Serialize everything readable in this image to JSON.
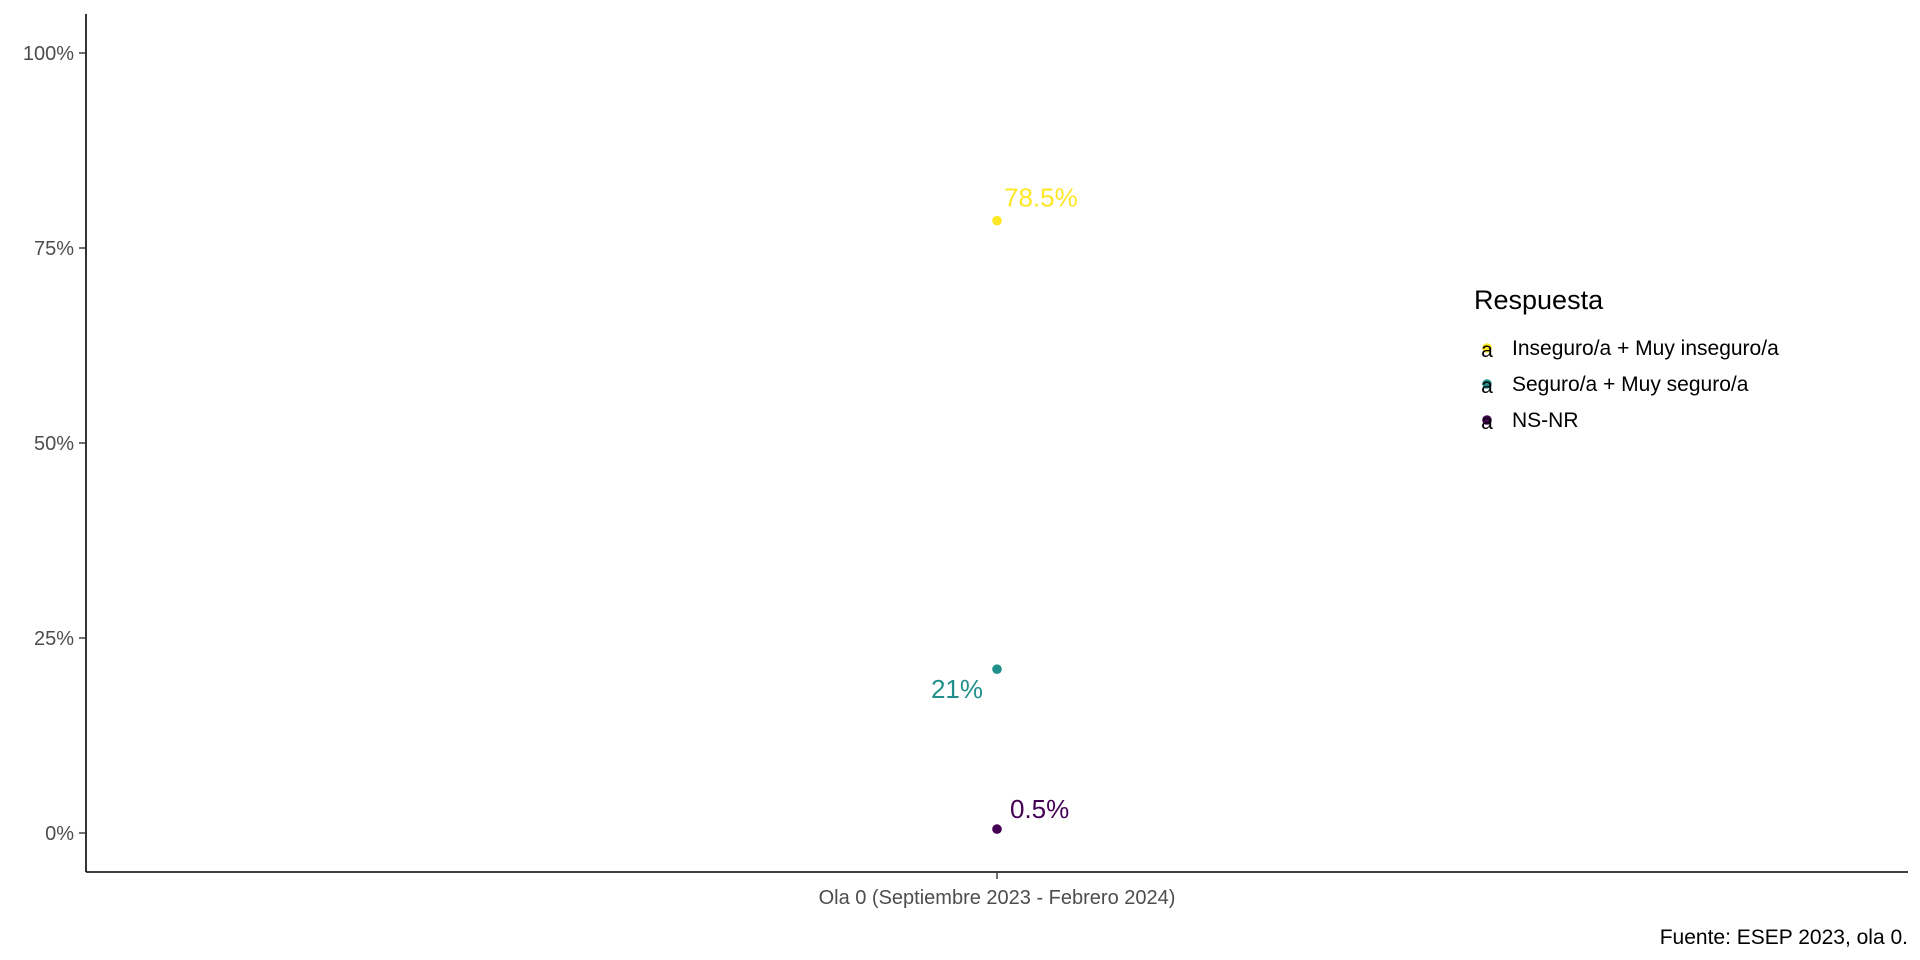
{
  "chart_data": {
    "type": "scatter",
    "categories": [
      "Ola 0 (Septiembre 2023 - Febrero 2024)"
    ],
    "series": [
      {
        "name": "Inseguro/a + Muy inseguro/a",
        "values": [
          78.5
        ],
        "label": "78.5%",
        "color": "#FDE725"
      },
      {
        "name": "Seguro/a + Muy seguro/a",
        "values": [
          21
        ],
        "label": "21%",
        "color": "#21908C"
      },
      {
        "name": "NS-NR",
        "values": [
          0.5
        ],
        "label": "0.5%",
        "color": "#440154"
      }
    ],
    "y_ticks": [
      0,
      25,
      50,
      75,
      100
    ],
    "y_tick_labels": [
      "0%",
      "25%",
      "50%",
      "75%",
      "100%"
    ],
    "ylim": [
      -5,
      105
    ],
    "xlabel": "",
    "ylabel": "",
    "grid": false,
    "legend": {
      "title": "Respuesta",
      "placement": "right",
      "glyph": "a"
    },
    "caption": "Fuente: ESEP 2023, ola 0."
  }
}
